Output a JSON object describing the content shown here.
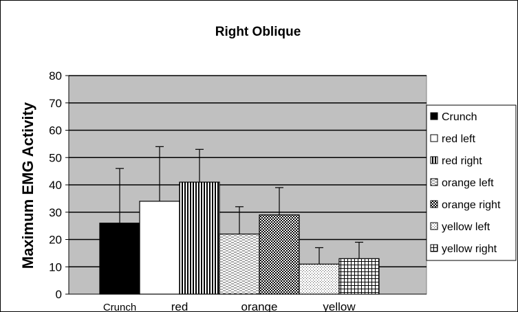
{
  "chart_data": {
    "type": "bar",
    "title": "Right Oblique",
    "ylabel": "Maximum EMG Activity",
    "xlabel": "",
    "ylim": [
      0,
      80
    ],
    "yticks": [
      0,
      10,
      20,
      30,
      40,
      50,
      60,
      70,
      80
    ],
    "grid": true,
    "legend_position": "right",
    "plot_background": "#c0c0c0",
    "categories": [
      "Crunch",
      "red",
      "orange",
      "yellow"
    ],
    "series": [
      {
        "name": "Crunch",
        "category": "Crunch",
        "value": 26,
        "error": 20,
        "pattern": "solid"
      },
      {
        "name": "red left",
        "category": "red",
        "value": 34,
        "error": 20,
        "pattern": "white"
      },
      {
        "name": "red right",
        "category": "red",
        "value": 41,
        "error": 12,
        "pattern": "vertical"
      },
      {
        "name": "orange left",
        "category": "orange",
        "value": 22,
        "error": 10,
        "pattern": "dash"
      },
      {
        "name": "orange right",
        "category": "orange",
        "value": 29,
        "error": 10,
        "pattern": "checker"
      },
      {
        "name": "yellow left",
        "category": "yellow",
        "value": 11,
        "error": 6,
        "pattern": "dots"
      },
      {
        "name": "yellow right",
        "category": "yellow",
        "value": 13,
        "error": 6,
        "pattern": "grid"
      }
    ]
  }
}
